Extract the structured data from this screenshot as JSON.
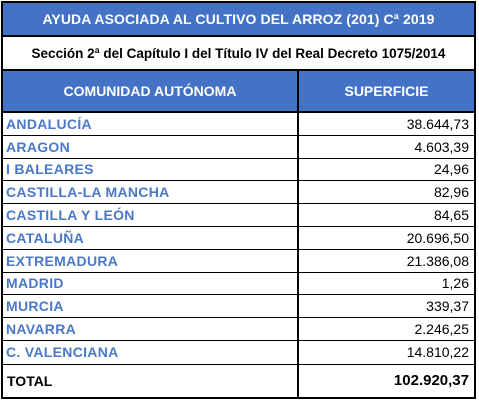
{
  "title": "AYUDA ASOCIADA AL CULTIVO DEL ARROZ (201) Cª 2019",
  "subtitle": "Sección 2ª del Capítulo I del Título IV del Real Decreto 1075/2014",
  "columns": {
    "community": "COMUNIDAD AUTÓNOMA",
    "surface": "SUPERFICIE"
  },
  "rows": [
    {
      "community": "ANDALUCÍA",
      "surface": "38.644,73"
    },
    {
      "community": "ARAGON",
      "surface": "4.603,39"
    },
    {
      "community": "I BALEARES",
      "surface": "24,96"
    },
    {
      "community": "CASTILLA-LA MANCHA",
      "surface": "82,96"
    },
    {
      "community": "CASTILLA Y LEÓN",
      "surface": "84,65"
    },
    {
      "community": "CATALUÑA",
      "surface": "20.696,50"
    },
    {
      "community": "EXTREMADURA",
      "surface": "21.386,08"
    },
    {
      "community": "MADRID",
      "surface": "1,26"
    },
    {
      "community": "MURCIA",
      "surface": "339,37"
    },
    {
      "community": "NAVARRA",
      "surface": "2.246,25"
    },
    {
      "community": "C. VALENCIANA",
      "surface": "14.810,22"
    }
  ],
  "total": {
    "label": "TOTAL",
    "value": "102.920,37"
  },
  "colors": {
    "header_bg": "#4472c4",
    "community_text": "#4a78c9"
  }
}
